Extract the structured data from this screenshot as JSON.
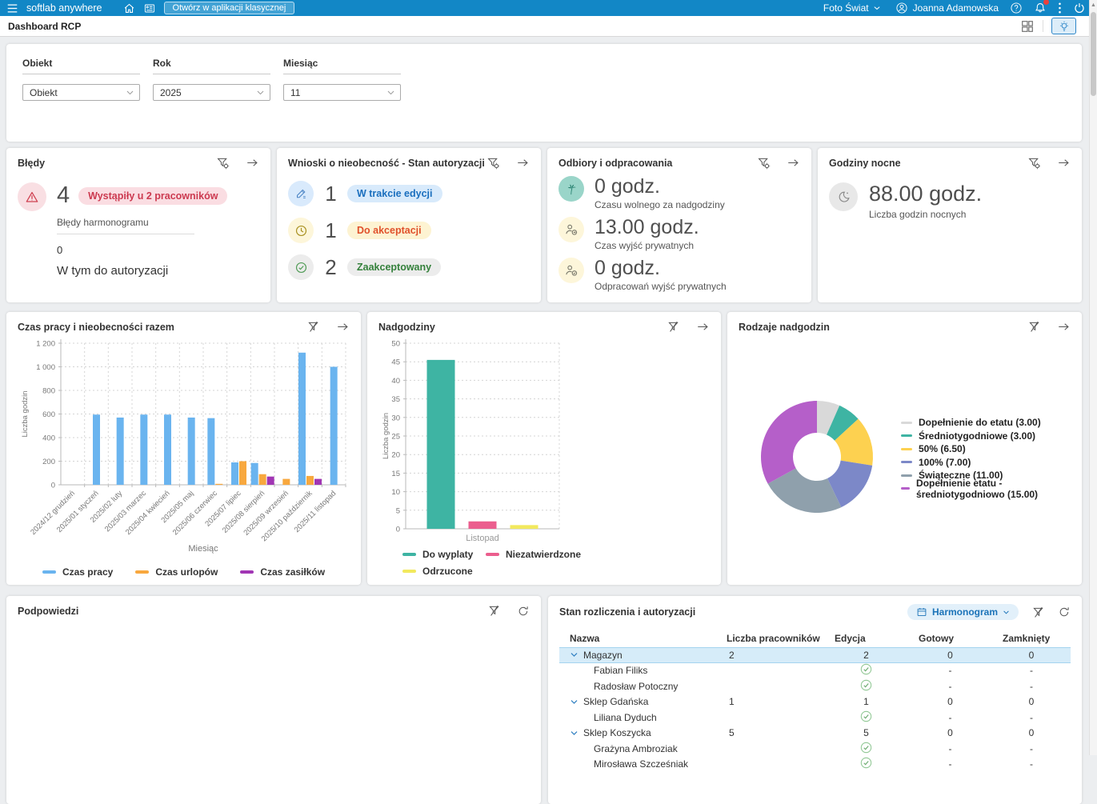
{
  "topbar": {
    "brand": "softlab anywhere",
    "open_classic_button": "Otwórz w aplikacji klasycznej",
    "company": "Foto Świat",
    "user": "Joanna Adamowska"
  },
  "page": {
    "title": "Dashboard RCP"
  },
  "filters": {
    "fields": [
      {
        "label": "Obiekt",
        "value": "Obiekt"
      },
      {
        "label": "Rok",
        "value": "2025"
      },
      {
        "label": "Miesiąc",
        "value": "11"
      }
    ]
  },
  "cards": {
    "bledy": {
      "title": "Błędy",
      "count": "4",
      "badge": "Wystąpiły u 2 pracowników",
      "sub_label": "Błędy harmonogramu",
      "count2": "0",
      "sub_label2": "W tym do autoryzacji",
      "icon": "warning-icon"
    },
    "wnioski": {
      "title": "Wnioski o nieobecność - Stan autoryzacji",
      "rows": [
        {
          "count": "1",
          "badge": "W trakcie edycji",
          "icon": "pencil-icon"
        },
        {
          "count": "1",
          "badge": "Do akceptacji",
          "icon": "clock-icon"
        },
        {
          "count": "2",
          "badge": "Zaakceptowany",
          "icon": "check-circle-icon"
        }
      ]
    },
    "odbiory": {
      "title": "Odbiory i odpracowania",
      "rows": [
        {
          "value": "0 godz.",
          "label": "Czasu wolnego za nadgodziny",
          "icon": "palm-icon"
        },
        {
          "value": "13.00 godz.",
          "label": "Czas wyjść prywatnych",
          "icon": "person-exit-icon"
        },
        {
          "value": "0 godz.",
          "label": "Odpracowań wyjść prywatnych",
          "icon": "person-check-icon"
        }
      ]
    },
    "godziny_nocne": {
      "title": "Godziny nocne",
      "value": "88.00 godz.",
      "label": "Liczba godzin nocnych",
      "icon": "moon-icon"
    }
  },
  "chart_data": [
    {
      "type": "bar",
      "title": "Czas pracy i nieobecności razem",
      "xlabel": "Miesiąc",
      "ylabel": "Liczba godzin",
      "ylim": [
        0,
        1200
      ],
      "ytick_step": 200,
      "ytick_labels": [
        "0",
        "200",
        "400",
        "600",
        "800",
        "1 000",
        "1 200"
      ],
      "grid": true,
      "legend_position": "bottom",
      "categories": [
        "2024/12 grudzień",
        "2025/01 styczeń",
        "2025/02 luty",
        "2025/03 marzec",
        "2025/04 kwiecień",
        "2025/05 maj",
        "2025/06 czerwiec",
        "2025/07 lipiec",
        "2025/08 sierpień",
        "2025/09 wrzesień",
        "2025/10 październik",
        "2025/11 listopad"
      ],
      "series": [
        {
          "name": "Czas pracy",
          "color": "#6ab4ef",
          "values": [
            0,
            595,
            570,
            595,
            595,
            570,
            565,
            190,
            185,
            0,
            1120,
            1000
          ]
        },
        {
          "name": "Czas urlopów",
          "color": "#f8a83e",
          "values": [
            0,
            0,
            0,
            0,
            0,
            0,
            8,
            200,
            90,
            50,
            75,
            0
          ]
        },
        {
          "name": "Czas zasiłków",
          "color": "#a136b4",
          "values": [
            0,
            0,
            0,
            0,
            0,
            0,
            0,
            0,
            70,
            0,
            50,
            0
          ]
        }
      ]
    },
    {
      "type": "bar",
      "title": "Nadgodziny",
      "xlabel": "",
      "ylabel": "Liczba godzin",
      "ylim": [
        0,
        50
      ],
      "ytick_step": 5,
      "grid": true,
      "legend_position": "bottom",
      "categories": [
        "Listopad"
      ],
      "series": [
        {
          "name": "Do wyplaty",
          "color": "#3eb4a3",
          "values": [
            45.5
          ]
        },
        {
          "name": "Niezatwierdzone",
          "color": "#eb5e8e",
          "values": [
            2
          ]
        },
        {
          "name": "Odrzucone",
          "color": "#f2e95e",
          "values": [
            1
          ]
        }
      ]
    },
    {
      "type": "pie",
      "donut": true,
      "title": "Rodzaje nadgodzin",
      "legend_position": "right",
      "slices": [
        {
          "label": "Dopełnienie do etatu (3.00)",
          "value": 3,
          "color": "#d9d9d9"
        },
        {
          "label": "Średniotygodniowe (3.00)",
          "value": 3,
          "color": "#3eb4a3"
        },
        {
          "label": "50% (6.50)",
          "value": 6.5,
          "color": "#fdd150"
        },
        {
          "label": "100% (7.00)",
          "value": 7,
          "color": "#7c88c8"
        },
        {
          "label": "Świąteczne (11.00)",
          "value": 11,
          "color": "#8fa0ac"
        },
        {
          "label": "Dopełnienie etatu - średniotygodniowo (15.00)",
          "value": 15,
          "color": "#b55fc9"
        }
      ]
    }
  ],
  "podpowiedzi": {
    "title": "Podpowiedzi"
  },
  "settlement": {
    "title": "Stan rozliczenia i autoryzacji",
    "view_button": "Harmonogram",
    "columns": [
      "Nazwa",
      "Liczba pracowników",
      "Edycja",
      "Gotowy",
      "Zamknięty"
    ],
    "rows": [
      {
        "type": "group",
        "name": "Magazyn",
        "employees": "2",
        "edycja": "2",
        "gotowy": "0",
        "zamkniety": "0",
        "selected": true
      },
      {
        "type": "child",
        "name": "Fabian Filiks",
        "edycja": "check",
        "gotowy": "-",
        "zamkniety": "-"
      },
      {
        "type": "child",
        "name": "Radosław Potoczny",
        "edycja": "check",
        "gotowy": "-",
        "zamkniety": "-"
      },
      {
        "type": "group",
        "name": "Sklep Gdańska",
        "employees": "1",
        "edycja": "1",
        "gotowy": "0",
        "zamkniety": "0"
      },
      {
        "type": "child",
        "name": "Liliana Dyduch",
        "edycja": "check",
        "gotowy": "-",
        "zamkniety": "-"
      },
      {
        "type": "group",
        "name": "Sklep Koszycka",
        "employees": "5",
        "edycja": "5",
        "gotowy": "0",
        "zamkniety": "0"
      },
      {
        "type": "child",
        "name": "Grażyna Ambroziak",
        "edycja": "check",
        "gotowy": "-",
        "zamkniety": "-"
      },
      {
        "type": "child",
        "name": "Mirosława Szcześniak",
        "edycja": "check",
        "gotowy": "-",
        "zamkniety": "-",
        "partial": true
      }
    ]
  }
}
